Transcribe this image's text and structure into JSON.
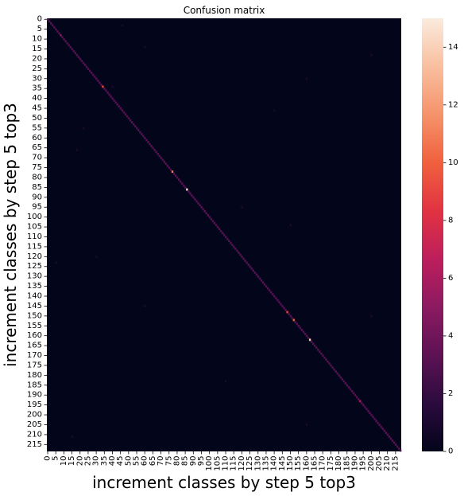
{
  "chart_data": {
    "type": "heatmap",
    "title": "Confusion matrix",
    "xlabel": "increment classes by step 5 top3",
    "ylabel": "increment classes by step 5 top3",
    "n_classes": 219,
    "x_tick_labels": [
      "0",
      "5",
      "10",
      "15",
      "20",
      "25",
      "30",
      "35",
      "40",
      "45",
      "50",
      "55",
      "60",
      "65",
      "70",
      "75",
      "80",
      "85",
      "90",
      "95",
      "100",
      "105",
      "110",
      "115",
      "120",
      "125",
      "130",
      "135",
      "140",
      "145",
      "150",
      "155",
      "160",
      "165",
      "170",
      "175",
      "180",
      "185",
      "190",
      "195",
      "200",
      "205",
      "210",
      "215"
    ],
    "y_tick_labels": [
      "0",
      "5",
      "10",
      "15",
      "20",
      "25",
      "30",
      "35",
      "40",
      "45",
      "50",
      "55",
      "60",
      "65",
      "70",
      "75",
      "80",
      "85",
      "90",
      "95",
      "100",
      "105",
      "110",
      "115",
      "120",
      "125",
      "130",
      "135",
      "140",
      "145",
      "150",
      "155",
      "160",
      "165",
      "170",
      "175",
      "180",
      "185",
      "190",
      "195",
      "200",
      "205",
      "210",
      "215"
    ],
    "diagonal_default_value": 3,
    "diagonal_highlights": [
      {
        "index": 8,
        "value": 5
      },
      {
        "index": 34,
        "value": 9
      },
      {
        "index": 77,
        "value": 11
      },
      {
        "index": 86,
        "value": 15
      },
      {
        "index": 148,
        "value": 9
      },
      {
        "index": 152,
        "value": 10
      },
      {
        "index": 162,
        "value": 14
      },
      {
        "index": 193,
        "value": 6
      }
    ],
    "off_diagonal": [
      {
        "row": 3,
        "col": 46,
        "value": 1
      },
      {
        "row": 14,
        "col": 60,
        "value": 1
      },
      {
        "row": 18,
        "col": 200,
        "value": 1
      },
      {
        "row": 30,
        "col": 160,
        "value": 1
      },
      {
        "row": 34,
        "col": 40,
        "value": 1
      },
      {
        "row": 46,
        "col": 140,
        "value": 1
      },
      {
        "row": 55,
        "col": 22,
        "value": 1
      },
      {
        "row": 66,
        "col": 18,
        "value": 1
      },
      {
        "row": 95,
        "col": 120,
        "value": 1
      },
      {
        "row": 104,
        "col": 150,
        "value": 1
      },
      {
        "row": 120,
        "col": 30,
        "value": 1
      },
      {
        "row": 123,
        "col": 5,
        "value": 1
      },
      {
        "row": 145,
        "col": 60,
        "value": 1
      },
      {
        "row": 150,
        "col": 200,
        "value": 1
      },
      {
        "row": 183,
        "col": 110,
        "value": 1
      },
      {
        "row": 205,
        "col": 160,
        "value": 1
      },
      {
        "row": 211,
        "col": 15,
        "value": 1
      }
    ],
    "colorbar": {
      "min": 0,
      "max": 15,
      "ticks": [
        "0",
        "2",
        "4",
        "6",
        "8",
        "10",
        "12",
        "14"
      ],
      "colormap": "rocket",
      "stops": [
        "#03051a",
        "#2b0b3e",
        "#5d1254",
        "#8c1a61",
        "#bd1e5c",
        "#e13342",
        "#f0603e",
        "#f5936b",
        "#f9bf9f",
        "#faebdd"
      ]
    }
  }
}
